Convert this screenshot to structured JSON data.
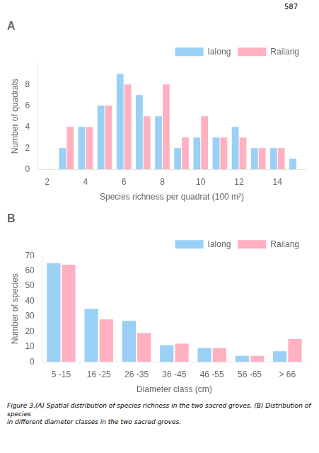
{
  "page_number": "587",
  "caption": "Figure 3.(A) Spatial distribution of species richness in the two sacred groves. (B) Distribution of species\nin different diameter classes in the two sacred groves.",
  "chart_data": [
    {
      "type": "bar",
      "title": "A",
      "xlabel": "Species richness per quadrat (100 m²)",
      "ylabel": "Number of quadrats",
      "x": [
        3,
        4,
        5,
        6,
        7,
        8,
        9,
        10,
        11,
        12,
        13,
        14,
        15
      ],
      "series": [
        {
          "name": "Ialong",
          "values": [
            2,
            4,
            6,
            9,
            7,
            5,
            2,
            3,
            3,
            4,
            2,
            2,
            1
          ]
        },
        {
          "name": "Railang",
          "values": [
            4,
            4,
            6,
            8,
            5,
            8,
            3,
            5,
            3,
            3,
            2,
            2,
            0
          ]
        }
      ],
      "xlim": [
        1.5,
        15.5
      ],
      "ylim": [
        0,
        10
      ],
      "xticks": [
        2,
        4,
        6,
        8,
        10,
        12,
        14
      ],
      "yticks": [
        0,
        2,
        4,
        6,
        8
      ],
      "grid": false,
      "legend": "upper right"
    },
    {
      "type": "bar",
      "title": "B",
      "xlabel": "Diameter class (cm)",
      "ylabel": "Number of species",
      "categories": [
        "5 -15",
        "16 -25",
        "26 -35",
        "36 -45",
        "46 -55",
        "56 -65",
        "> 66"
      ],
      "series": [
        {
          "name": "Ialong",
          "values": [
            65,
            35,
            27,
            11,
            9,
            4,
            7
          ]
        },
        {
          "name": "Railang",
          "values": [
            64,
            28,
            19,
            12,
            9,
            4,
            15
          ]
        }
      ],
      "ylim": [
        0,
        70
      ],
      "yticks": [
        0,
        10,
        20,
        30,
        40,
        50,
        60,
        70
      ],
      "grid": false,
      "legend": "upper right"
    }
  ]
}
